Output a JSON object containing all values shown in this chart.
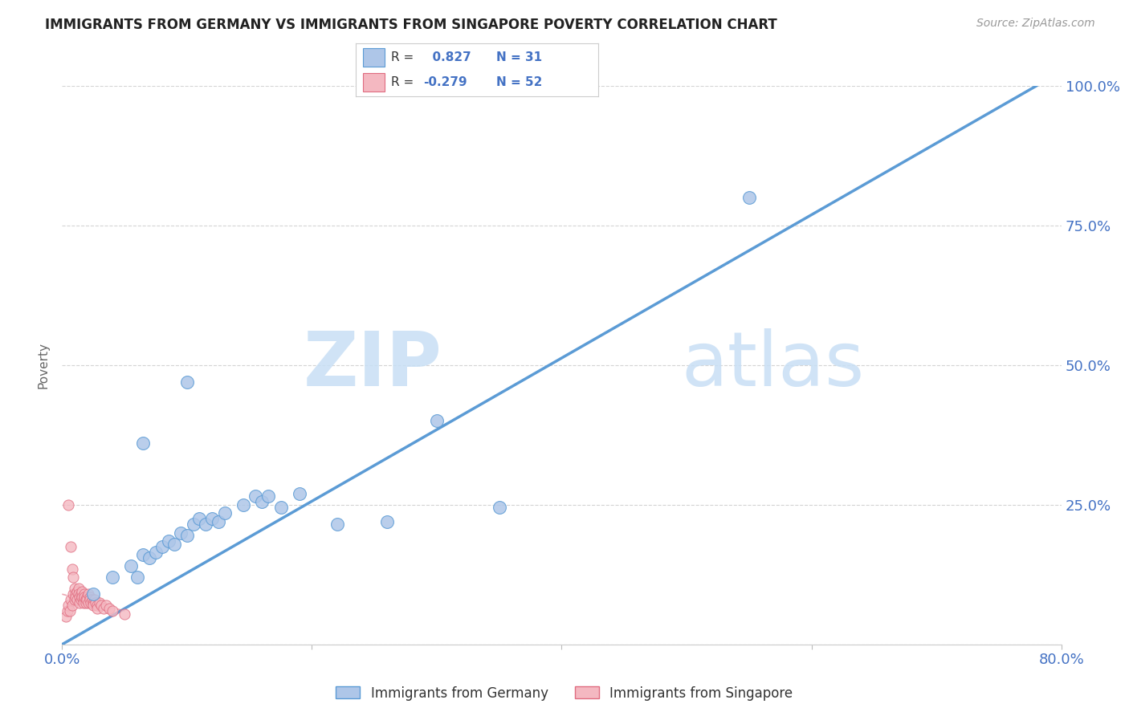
{
  "title": "IMMIGRANTS FROM GERMANY VS IMMIGRANTS FROM SINGAPORE POVERTY CORRELATION CHART",
  "source": "Source: ZipAtlas.com",
  "ylabel": "Poverty",
  "xlim": [
    0.0,
    0.8
  ],
  "ylim": [
    0.0,
    1.0
  ],
  "xticks": [
    0.0,
    0.2,
    0.4,
    0.6,
    0.8
  ],
  "yticks_right": [
    0.0,
    0.25,
    0.5,
    0.75,
    1.0
  ],
  "yticklabels_right": [
    "",
    "25.0%",
    "50.0%",
    "75.0%",
    "100.0%"
  ],
  "germany_color": "#aec6e8",
  "germany_edge": "#5b9bd5",
  "singapore_color": "#f4b8c1",
  "singapore_edge": "#e06c80",
  "germany_R": 0.827,
  "germany_N": 31,
  "singapore_R": -0.279,
  "singapore_N": 52,
  "background_color": "#ffffff",
  "grid_color": "#d0d0d0",
  "watermark_zip": "ZIP",
  "watermark_atlas": "atlas",
  "germany_line_x": [
    0.0,
    0.78
  ],
  "germany_line_y": [
    0.0,
    1.0
  ],
  "singapore_line_x": [
    0.0,
    0.05
  ],
  "singapore_line_y": [
    0.09,
    0.06
  ],
  "germany_scatter_x": [
    0.025,
    0.04,
    0.055,
    0.06,
    0.065,
    0.07,
    0.075,
    0.08,
    0.085,
    0.09,
    0.095,
    0.1,
    0.105,
    0.11,
    0.115,
    0.12,
    0.125,
    0.13,
    0.145,
    0.155,
    0.16,
    0.165,
    0.175,
    0.19,
    0.22,
    0.26,
    0.1,
    0.065,
    0.55,
    0.3,
    0.35
  ],
  "germany_scatter_y": [
    0.09,
    0.12,
    0.14,
    0.12,
    0.16,
    0.155,
    0.165,
    0.175,
    0.185,
    0.18,
    0.2,
    0.195,
    0.215,
    0.225,
    0.215,
    0.225,
    0.22,
    0.235,
    0.25,
    0.265,
    0.255,
    0.265,
    0.245,
    0.27,
    0.215,
    0.22,
    0.47,
    0.36,
    0.8,
    0.4,
    0.245
  ],
  "singapore_scatter_x": [
    0.003,
    0.004,
    0.005,
    0.006,
    0.007,
    0.008,
    0.009,
    0.01,
    0.01,
    0.011,
    0.011,
    0.012,
    0.012,
    0.013,
    0.013,
    0.014,
    0.014,
    0.015,
    0.015,
    0.016,
    0.016,
    0.017,
    0.017,
    0.018,
    0.018,
    0.019,
    0.019,
    0.02,
    0.02,
    0.021,
    0.021,
    0.022,
    0.022,
    0.023,
    0.024,
    0.025,
    0.025,
    0.026,
    0.027,
    0.028,
    0.028,
    0.03,
    0.031,
    0.033,
    0.035,
    0.038,
    0.04,
    0.005,
    0.007,
    0.008,
    0.009,
    0.05
  ],
  "singapore_scatter_y": [
    0.05,
    0.06,
    0.07,
    0.06,
    0.08,
    0.07,
    0.09,
    0.08,
    0.1,
    0.09,
    0.085,
    0.095,
    0.08,
    0.1,
    0.09,
    0.085,
    0.075,
    0.09,
    0.08,
    0.095,
    0.085,
    0.08,
    0.075,
    0.09,
    0.085,
    0.08,
    0.075,
    0.085,
    0.08,
    0.09,
    0.075,
    0.085,
    0.08,
    0.075,
    0.08,
    0.075,
    0.07,
    0.08,
    0.075,
    0.07,
    0.065,
    0.075,
    0.07,
    0.065,
    0.07,
    0.065,
    0.06,
    0.25,
    0.175,
    0.135,
    0.12,
    0.055
  ]
}
